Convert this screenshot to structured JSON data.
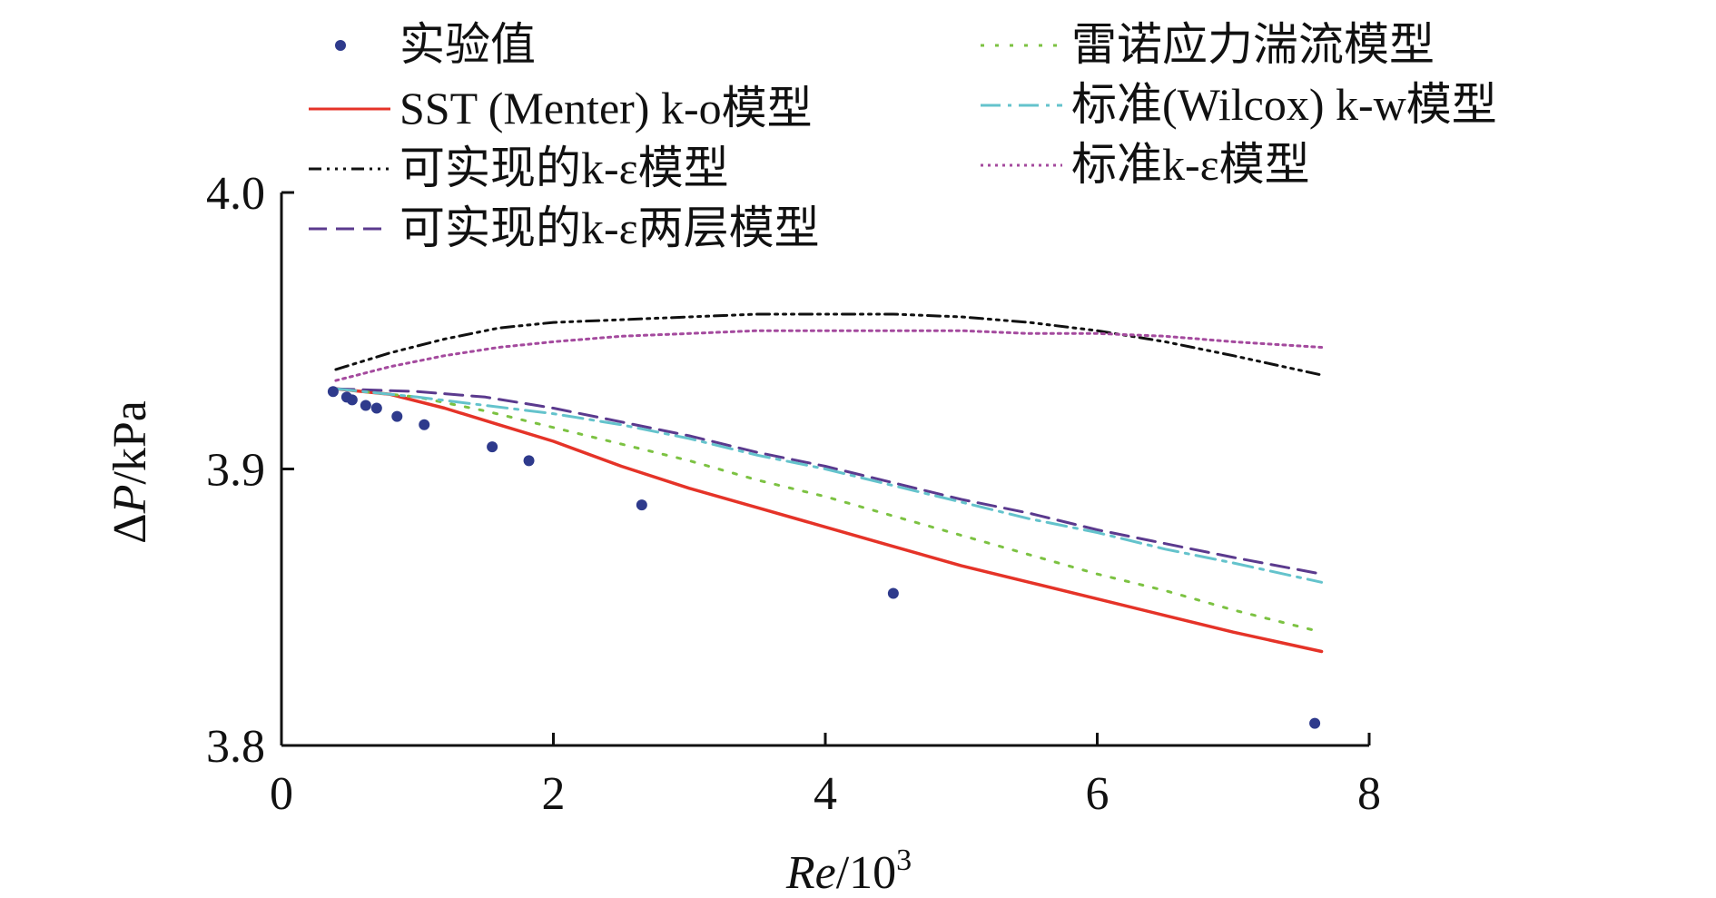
{
  "chart_data": {
    "type": "line",
    "title": "",
    "xlabel": "Re/10³",
    "xlabel_parts": {
      "var": "Re",
      "slash": "/10",
      "sup": "3"
    },
    "ylabel": "ΔP/kPa",
    "ylabel_parts": {
      "delta": "Δ",
      "var": "P",
      "rest": "/kPa"
    },
    "xlim": [
      0,
      8
    ],
    "ylim": [
      3.8,
      4.0
    ],
    "xticks": [
      0,
      2,
      4,
      6,
      8
    ],
    "xtick_labels": [
      "0",
      "2",
      "4",
      "6",
      "8"
    ],
    "yticks": [
      3.8,
      3.9,
      4.0
    ],
    "ytick_labels": [
      "3.8",
      "3.9",
      "4.0"
    ],
    "grid": false,
    "legend_position": "top",
    "legend": [
      {
        "key": "exp",
        "label": "实验值"
      },
      {
        "key": "sst",
        "label": "SST (Menter) k-o模型"
      },
      {
        "key": "rke",
        "label": "可实现的k-ε模型"
      },
      {
        "key": "rke2",
        "label": "可实现的k-ε两层模型"
      },
      {
        "key": "rsm",
        "label": "雷诺应力湍流模型"
      },
      {
        "key": "skw",
        "label": "标准(Wilcox) k-w模型"
      },
      {
        "key": "ske",
        "label": "标准k-ε模型"
      }
    ],
    "series": [
      {
        "key": "exp",
        "name": "实验值",
        "kind": "scatter",
        "color": "#2e3a8c",
        "x": [
          0.38,
          0.48,
          0.52,
          0.62,
          0.7,
          0.85,
          1.05,
          1.55,
          1.82,
          2.65,
          4.5,
          7.6
        ],
        "y": [
          3.928,
          3.926,
          3.925,
          3.923,
          3.922,
          3.919,
          3.916,
          3.908,
          3.903,
          3.887,
          3.855,
          3.808
        ]
      },
      {
        "key": "sst",
        "name": "SST (Menter) k-o模型",
        "kind": "line",
        "color": "#e53328",
        "dash": "",
        "x": [
          0.4,
          0.8,
          1.2,
          1.6,
          2.0,
          2.5,
          3.0,
          3.5,
          4.0,
          4.5,
          5.0,
          5.5,
          6.0,
          6.5,
          7.0,
          7.65
        ],
        "y": [
          3.929,
          3.927,
          3.922,
          3.916,
          3.91,
          3.901,
          3.893,
          3.886,
          3.879,
          3.872,
          3.865,
          3.859,
          3.853,
          3.847,
          3.841,
          3.834
        ]
      },
      {
        "key": "rke",
        "name": "可实现的k-ε模型",
        "kind": "line",
        "color": "#111111",
        "dash": "14 6 3 6 3 6 3 6",
        "x": [
          0.4,
          0.8,
          1.2,
          1.6,
          2.0,
          2.5,
          3.0,
          3.5,
          4.0,
          4.5,
          5.0,
          5.5,
          6.0,
          6.5,
          7.0,
          7.65
        ],
        "y": [
          3.936,
          3.942,
          3.947,
          3.951,
          3.953,
          3.954,
          3.955,
          3.956,
          3.956,
          3.956,
          3.955,
          3.953,
          3.95,
          3.946,
          3.941,
          3.934
        ]
      },
      {
        "key": "rke2",
        "name": "可实现的k-ε两层模型",
        "kind": "line",
        "color": "#5b3a8e",
        "dash": "20 10",
        "x": [
          0.4,
          1.0,
          1.5,
          2.0,
          2.5,
          3.0,
          3.5,
          4.0,
          4.5,
          5.0,
          5.5,
          6.0,
          6.5,
          7.0,
          7.65
        ],
        "y": [
          3.929,
          3.928,
          3.926,
          3.922,
          3.917,
          3.912,
          3.906,
          3.901,
          3.895,
          3.889,
          3.884,
          3.878,
          3.873,
          3.868,
          3.862
        ]
      },
      {
        "key": "rsm",
        "name": "雷诺应力湍流模型",
        "kind": "line",
        "color": "#7cc242",
        "dash": "4 12",
        "x": [
          0.4,
          1.0,
          1.5,
          2.0,
          2.5,
          3.0,
          3.5,
          4.0,
          4.5,
          5.0,
          5.5,
          6.0,
          6.5,
          7.0,
          7.65
        ],
        "y": [
          3.929,
          3.926,
          3.921,
          3.915,
          3.909,
          3.903,
          3.896,
          3.89,
          3.883,
          3.876,
          3.869,
          3.862,
          3.856,
          3.849,
          3.841
        ]
      },
      {
        "key": "skw",
        "name": "标准(Wilcox) k-w模型",
        "kind": "line",
        "color": "#64c3cc",
        "dash": "22 8 4 8",
        "x": [
          0.4,
          1.0,
          1.5,
          2.0,
          2.5,
          3.0,
          3.5,
          4.0,
          4.5,
          5.0,
          5.5,
          6.0,
          6.5,
          7.0,
          7.65
        ],
        "y": [
          3.929,
          3.926,
          3.923,
          3.92,
          3.916,
          3.911,
          3.905,
          3.9,
          3.894,
          3.888,
          3.882,
          3.877,
          3.871,
          3.866,
          3.859
        ]
      },
      {
        "key": "ske",
        "name": "标准k-ε模型",
        "kind": "line",
        "color": "#a44a9e",
        "dash": "3 5",
        "x": [
          0.4,
          0.8,
          1.2,
          1.6,
          2.0,
          2.5,
          3.0,
          3.5,
          4.0,
          4.5,
          5.0,
          5.5,
          6.0,
          6.5,
          7.0,
          7.65
        ],
        "y": [
          3.932,
          3.937,
          3.941,
          3.944,
          3.946,
          3.948,
          3.949,
          3.95,
          3.95,
          3.95,
          3.95,
          3.949,
          3.949,
          3.948,
          3.946,
          3.944
        ]
      }
    ]
  }
}
